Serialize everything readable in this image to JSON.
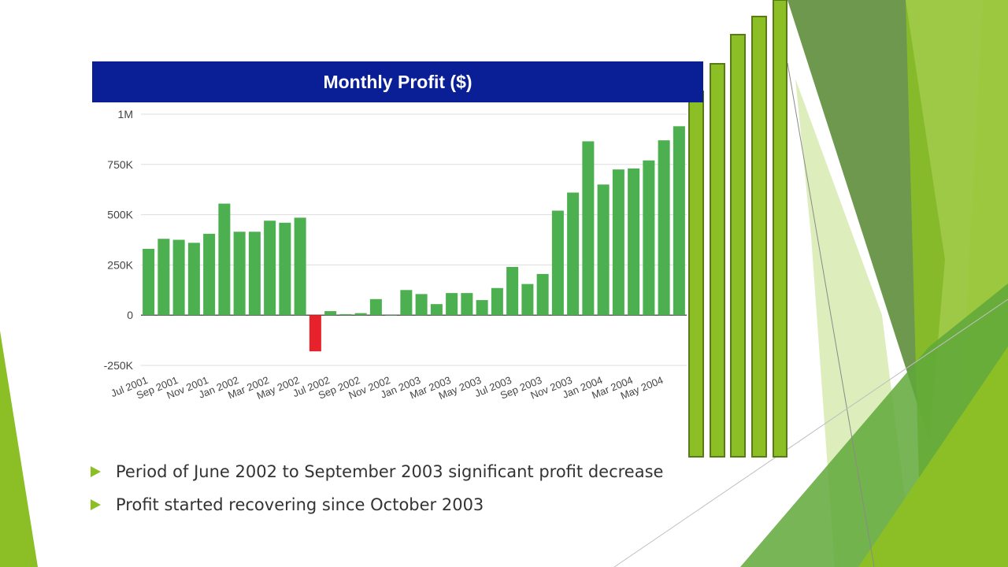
{
  "slide": {
    "bullets": [
      "Period of June 2002 to September 2003 significant profit decrease",
      "Profit started recovering since October 2003"
    ],
    "colors": {
      "accent": "#8cbf26",
      "header_bg": "#0a1f96",
      "bar_positive": "#4caf50",
      "bar_negative": "#e8222a"
    }
  },
  "chart_data": {
    "type": "bar",
    "title": "Monthly Profit ($)",
    "xlabel": "",
    "ylabel": "",
    "ylim": [
      -250000,
      1000000
    ],
    "y_ticks": [
      1000000,
      750000,
      500000,
      250000,
      0,
      -250000
    ],
    "y_tick_labels": [
      "1M",
      "750K",
      "500K",
      "250K",
      "0",
      "-250K"
    ],
    "x_tick_labels": [
      "Jul 2001",
      "Sep 2001",
      "Nov 2001",
      "Jan 2002",
      "Mar 2002",
      "May 2002",
      "Jul 2002",
      "Sep 2002",
      "Nov 2002",
      "Jan 2003",
      "Mar 2003",
      "May 2003",
      "Jul 2003",
      "Sep 2003",
      "Nov 2003",
      "Jan 2004",
      "Mar 2004",
      "May 2004"
    ],
    "categories": [
      "Jul 2001",
      "Aug 2001",
      "Sep 2001",
      "Oct 2001",
      "Nov 2001",
      "Dec 2001",
      "Jan 2002",
      "Feb 2002",
      "Mar 2002",
      "Apr 2002",
      "May 2002",
      "Jun 2002",
      "Jul 2002",
      "Aug 2002",
      "Sep 2002",
      "Oct 2002",
      "Nov 2002",
      "Dec 2002",
      "Jan 2003",
      "Feb 2003",
      "Mar 2003",
      "Apr 2003",
      "May 2003",
      "Jun 2003",
      "Jul 2003",
      "Aug 2003",
      "Sep 2003",
      "Oct 2003",
      "Nov 2003",
      "Dec 2003",
      "Jan 2004",
      "Feb 2004",
      "Mar 2004",
      "Apr 2004",
      "May 2004",
      "Jun 2004"
    ],
    "values": [
      330000,
      380000,
      375000,
      360000,
      405000,
      555000,
      415000,
      415000,
      470000,
      460000,
      485000,
      -180000,
      20000,
      5000,
      10000,
      80000,
      0,
      125000,
      105000,
      55000,
      110000,
      110000,
      75000,
      135000,
      240000,
      155000,
      205000,
      520000,
      610000,
      865000,
      650000,
      725000,
      730000,
      770000,
      870000,
      940000
    ],
    "grid": true,
    "legend": "none"
  }
}
